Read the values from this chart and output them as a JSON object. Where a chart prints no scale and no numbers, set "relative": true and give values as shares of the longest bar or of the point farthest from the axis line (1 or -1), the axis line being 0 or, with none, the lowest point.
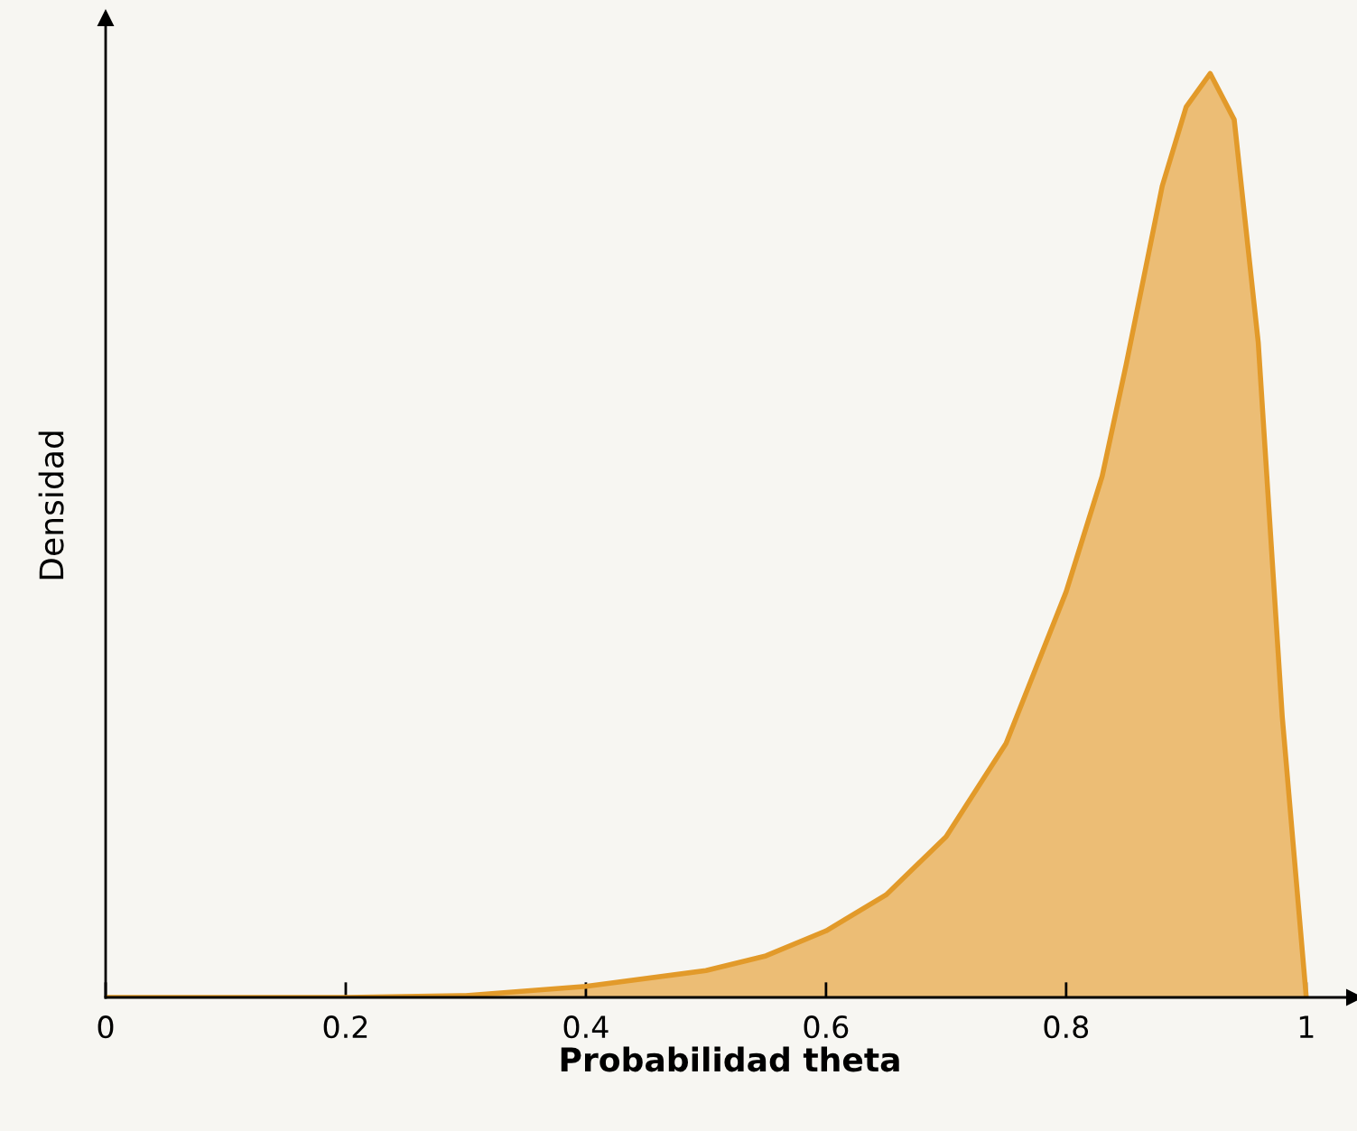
{
  "chart_data": {
    "type": "area",
    "xlabel": "Probabilidad theta",
    "ylabel": "Densidad",
    "relative": true,
    "x": [
      0,
      0.1,
      0.2,
      0.3,
      0.4,
      0.5,
      0.55,
      0.6,
      0.65,
      0.7,
      0.75,
      0.8,
      0.83,
      0.85,
      0.88,
      0.9,
      0.92,
      0.94,
      0.96,
      0.98,
      1.0
    ],
    "series": [
      {
        "color": "#e29a2a",
        "values": [
          0,
          0,
          0,
          0.002,
          0.012,
          0.029,
          0.045,
          0.072,
          0.111,
          0.174,
          0.275,
          0.439,
          0.564,
          0.685,
          0.878,
          0.964,
          1,
          0.95,
          0.709,
          0.304,
          0
        ]
      }
    ],
    "xlim": [
      0,
      1.04
    ],
    "xticks": [
      0,
      0.2,
      0.4,
      0.6,
      0.8,
      1
    ],
    "grid": false,
    "legend": false
  }
}
